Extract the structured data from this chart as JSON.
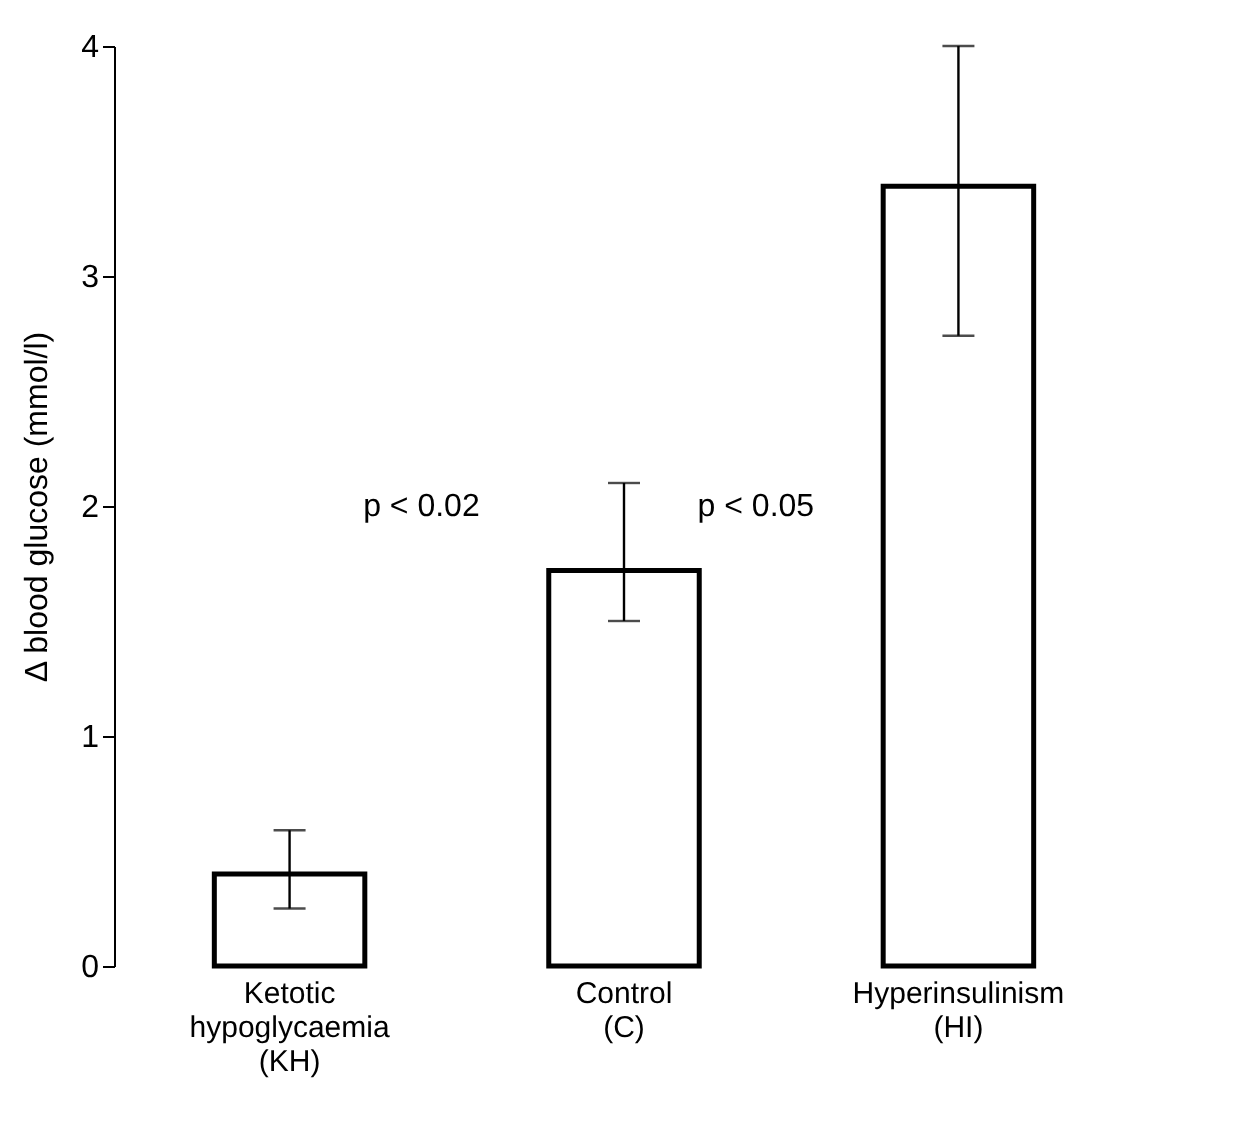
{
  "chart_data": {
    "type": "bar",
    "ylabel": "Δ blood glucose (mmol/l)",
    "categories": [
      "Ketotic\nhypoglycaemia\n(KH)",
      "Control\n(C)",
      "Hyperinsulinism\n(HI)"
    ],
    "values": [
      0.4,
      1.72,
      3.39
    ],
    "errors": [
      [
        0.25,
        0.59
      ],
      [
        1.5,
        2.1
      ],
      [
        2.74,
        4.0
      ]
    ],
    "color": "#ffffff",
    "ylim": [
      0,
      4
    ],
    "yticks": [
      0,
      1,
      2,
      3,
      4
    ],
    "grid": false,
    "annotations": [
      "p < 0.02",
      "p < 0.05"
    ]
  }
}
